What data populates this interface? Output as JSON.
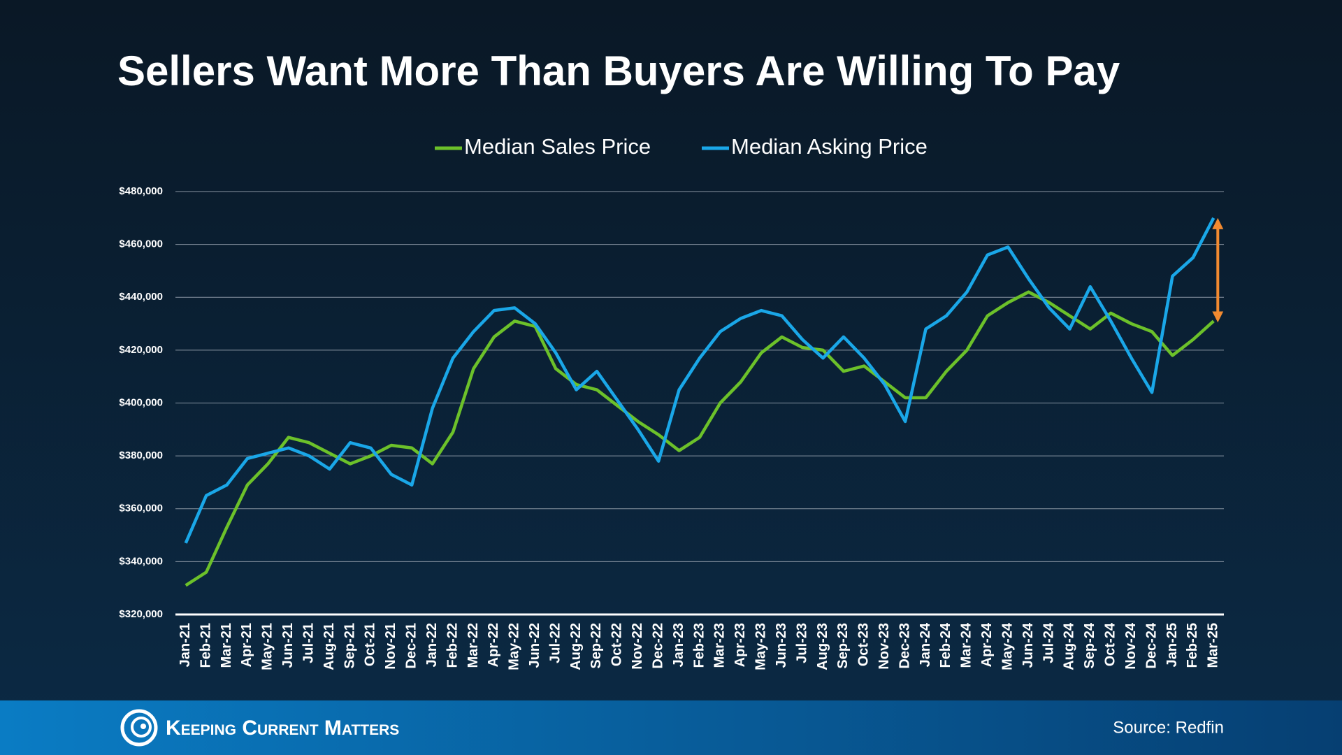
{
  "chart_data": {
    "type": "line",
    "title": "Sellers Want More Than Buyers Are Willing To Pay",
    "categories": [
      "Jan-21",
      "Feb-21",
      "Mar-21",
      "Apr-21",
      "May-21",
      "Jun-21",
      "Jul-21",
      "Aug-21",
      "Sep-21",
      "Oct-21",
      "Nov-21",
      "Dec-21",
      "Jan-22",
      "Feb-22",
      "Mar-22",
      "Apr-22",
      "May-22",
      "Jun-22",
      "Jul-22",
      "Aug-22",
      "Sep-22",
      "Oct-22",
      "Nov-22",
      "Dec-22",
      "Jan-23",
      "Feb-23",
      "Mar-23",
      "Apr-23",
      "May-23",
      "Jun-23",
      "Jul-23",
      "Aug-23",
      "Sep-23",
      "Oct-23",
      "Nov-23",
      "Dec-23",
      "Jan-24",
      "Feb-24",
      "Mar-24",
      "Apr-24",
      "May-24",
      "Jun-24",
      "Jul-24",
      "Aug-24",
      "Sep-24",
      "Oct-24",
      "Nov-24",
      "Dec-24",
      "Jan-25",
      "Feb-25",
      "Mar-25"
    ],
    "series": [
      {
        "name": "Median Sales Price",
        "color": "#6cc12a",
        "values": [
          331000,
          336000,
          353000,
          369000,
          377000,
          387000,
          385000,
          381000,
          377000,
          380000,
          384000,
          383000,
          377000,
          389000,
          413000,
          425000,
          431000,
          429000,
          413000,
          407000,
          405000,
          399000,
          393000,
          388000,
          382000,
          387000,
          400000,
          408000,
          419000,
          425000,
          421000,
          420000,
          412000,
          414000,
          408000,
          402000,
          402000,
          412000,
          420000,
          433000,
          438000,
          442000,
          438000,
          433000,
          428000,
          434000,
          430000,
          427000,
          418000,
          424000,
          431000
        ]
      },
      {
        "name": "Median Asking Price",
        "color": "#1aa7e8",
        "values": [
          347000,
          365000,
          369000,
          379000,
          381000,
          383000,
          380000,
          375000,
          385000,
          383000,
          373000,
          369000,
          398000,
          417000,
          427000,
          435000,
          436000,
          430000,
          419000,
          405000,
          412000,
          401000,
          390000,
          378000,
          405000,
          417000,
          427000,
          432000,
          435000,
          433000,
          424000,
          417000,
          425000,
          417000,
          407000,
          393000,
          428000,
          433000,
          442000,
          456000,
          459000,
          447000,
          436000,
          428000,
          444000,
          431000,
          417000,
          404000,
          448000,
          455000,
          470000
        ]
      }
    ],
    "ylim": [
      320000,
      480000
    ],
    "yticks": [
      {
        "value": 320000,
        "label": "$320,000"
      },
      {
        "value": 340000,
        "label": "$340,000"
      },
      {
        "value": 360000,
        "label": "$360,000"
      },
      {
        "value": 380000,
        "label": "$380,000"
      },
      {
        "value": 400000,
        "label": "$400,000"
      },
      {
        "value": 420000,
        "label": "$420,000"
      },
      {
        "value": 440000,
        "label": "$440,000"
      },
      {
        "value": 460000,
        "label": "$460,000"
      },
      {
        "value": 480000,
        "label": "$480,000"
      }
    ],
    "grid": true
  },
  "footer": {
    "brand": "Keeping Current Matters",
    "source": "Source: Redfin"
  }
}
